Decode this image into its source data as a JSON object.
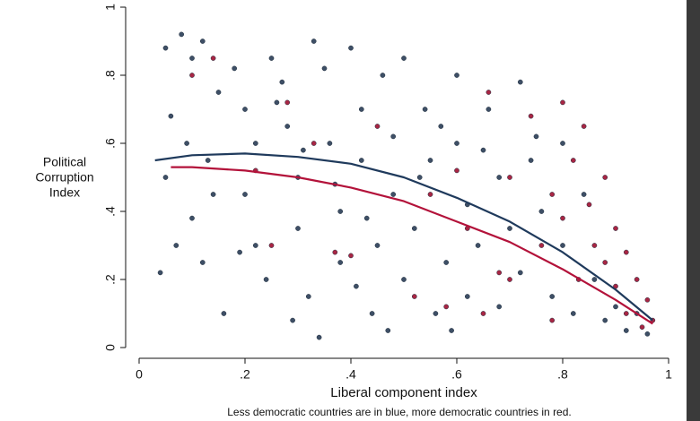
{
  "chart_data": {
    "type": "scatter",
    "x_label": "Liberal component index",
    "y_label": [
      "Political",
      "Corruption",
      "Index"
    ],
    "note": "Less democratic countries are in blue, more democratic countries in red.",
    "xlim": [
      0,
      1
    ],
    "ylim": [
      0,
      1
    ],
    "xticks": [
      0,
      {
        "value": 0.2,
        "label": ".2"
      },
      {
        "value": 0.4,
        "label": ".4"
      },
      {
        "value": 0.6,
        "label": ".6"
      },
      {
        "value": 0.8,
        "label": ".8"
      },
      1
    ],
    "yticks": [
      0,
      {
        "value": 0.2,
        "label": ".2"
      },
      {
        "value": 0.4,
        "label": ".4"
      },
      {
        "value": 0.6,
        "label": ".6"
      },
      {
        "value": 0.8,
        "label": ".8"
      },
      1
    ],
    "series": [
      {
        "type": "scatter",
        "color": "#3e4f66",
        "x": [
          0.05,
          0.08,
          0.1,
          0.12,
          0.06,
          0.09,
          0.05,
          0.04,
          0.07,
          0.1,
          0.12,
          0.14,
          0.16,
          0.15,
          0.18,
          0.2,
          0.22,
          0.2,
          0.22,
          0.24,
          0.25,
          0.27,
          0.28,
          0.3,
          0.3,
          0.32,
          0.33,
          0.35,
          0.34,
          0.36,
          0.38,
          0.38,
          0.4,
          0.42,
          0.42,
          0.44,
          0.45,
          0.46,
          0.48,
          0.48,
          0.5,
          0.5,
          0.52,
          0.54,
          0.55,
          0.56,
          0.58,
          0.6,
          0.6,
          0.62,
          0.62,
          0.64,
          0.66,
          0.68,
          0.68,
          0.7,
          0.72,
          0.72,
          0.74,
          0.76,
          0.78,
          0.8,
          0.8,
          0.82,
          0.84,
          0.86,
          0.88,
          0.9,
          0.92,
          0.94,
          0.96,
          0.26,
          0.31,
          0.37,
          0.43,
          0.53,
          0.57,
          0.65,
          0.75,
          0.13,
          0.19,
          0.29,
          0.41,
          0.47,
          0.59
        ],
        "y": [
          0.88,
          0.92,
          0.85,
          0.9,
          0.68,
          0.6,
          0.5,
          0.22,
          0.3,
          0.38,
          0.25,
          0.45,
          0.1,
          0.75,
          0.82,
          0.7,
          0.6,
          0.45,
          0.3,
          0.2,
          0.85,
          0.78,
          0.65,
          0.5,
          0.35,
          0.15,
          0.9,
          0.82,
          0.03,
          0.6,
          0.4,
          0.25,
          0.88,
          0.7,
          0.55,
          0.1,
          0.3,
          0.8,
          0.62,
          0.45,
          0.2,
          0.85,
          0.35,
          0.7,
          0.55,
          0.1,
          0.25,
          0.8,
          0.6,
          0.42,
          0.15,
          0.3,
          0.7,
          0.5,
          0.12,
          0.35,
          0.78,
          0.22,
          0.55,
          0.4,
          0.15,
          0.6,
          0.3,
          0.1,
          0.45,
          0.2,
          0.08,
          0.12,
          0.05,
          0.1,
          0.04,
          0.72,
          0.58,
          0.48,
          0.38,
          0.5,
          0.65,
          0.58,
          0.62,
          0.55,
          0.28,
          0.08,
          0.18,
          0.05,
          0.05
        ]
      },
      {
        "type": "scatter",
        "color": "#a82644",
        "x": [
          0.1,
          0.14,
          0.22,
          0.25,
          0.28,
          0.33,
          0.37,
          0.4,
          0.45,
          0.52,
          0.55,
          0.6,
          0.62,
          0.65,
          0.7,
          0.7,
          0.74,
          0.76,
          0.78,
          0.8,
          0.8,
          0.82,
          0.83,
          0.85,
          0.86,
          0.88,
          0.88,
          0.9,
          0.9,
          0.92,
          0.92,
          0.94,
          0.95,
          0.96,
          0.97,
          0.84,
          0.78,
          0.68,
          0.58,
          0.66
        ],
        "y": [
          0.8,
          0.85,
          0.52,
          0.3,
          0.72,
          0.6,
          0.28,
          0.27,
          0.65,
          0.15,
          0.45,
          0.52,
          0.35,
          0.1,
          0.5,
          0.2,
          0.68,
          0.3,
          0.45,
          0.72,
          0.38,
          0.55,
          0.2,
          0.42,
          0.3,
          0.25,
          0.5,
          0.35,
          0.18,
          0.28,
          0.1,
          0.2,
          0.06,
          0.14,
          0.08,
          0.65,
          0.08,
          0.22,
          0.12,
          0.75
        ]
      },
      {
        "type": "line",
        "color": "#1f3a5c",
        "x": [
          0.03,
          0.1,
          0.2,
          0.3,
          0.4,
          0.5,
          0.6,
          0.7,
          0.8,
          0.9,
          0.97
        ],
        "y": [
          0.55,
          0.565,
          0.57,
          0.56,
          0.54,
          0.5,
          0.44,
          0.37,
          0.28,
          0.17,
          0.08
        ]
      },
      {
        "type": "line",
        "color": "#b3123a",
        "x": [
          0.06,
          0.1,
          0.2,
          0.3,
          0.4,
          0.5,
          0.6,
          0.7,
          0.8,
          0.9,
          0.97
        ],
        "y": [
          0.53,
          0.53,
          0.52,
          0.5,
          0.47,
          0.43,
          0.37,
          0.31,
          0.23,
          0.14,
          0.07
        ]
      }
    ]
  }
}
